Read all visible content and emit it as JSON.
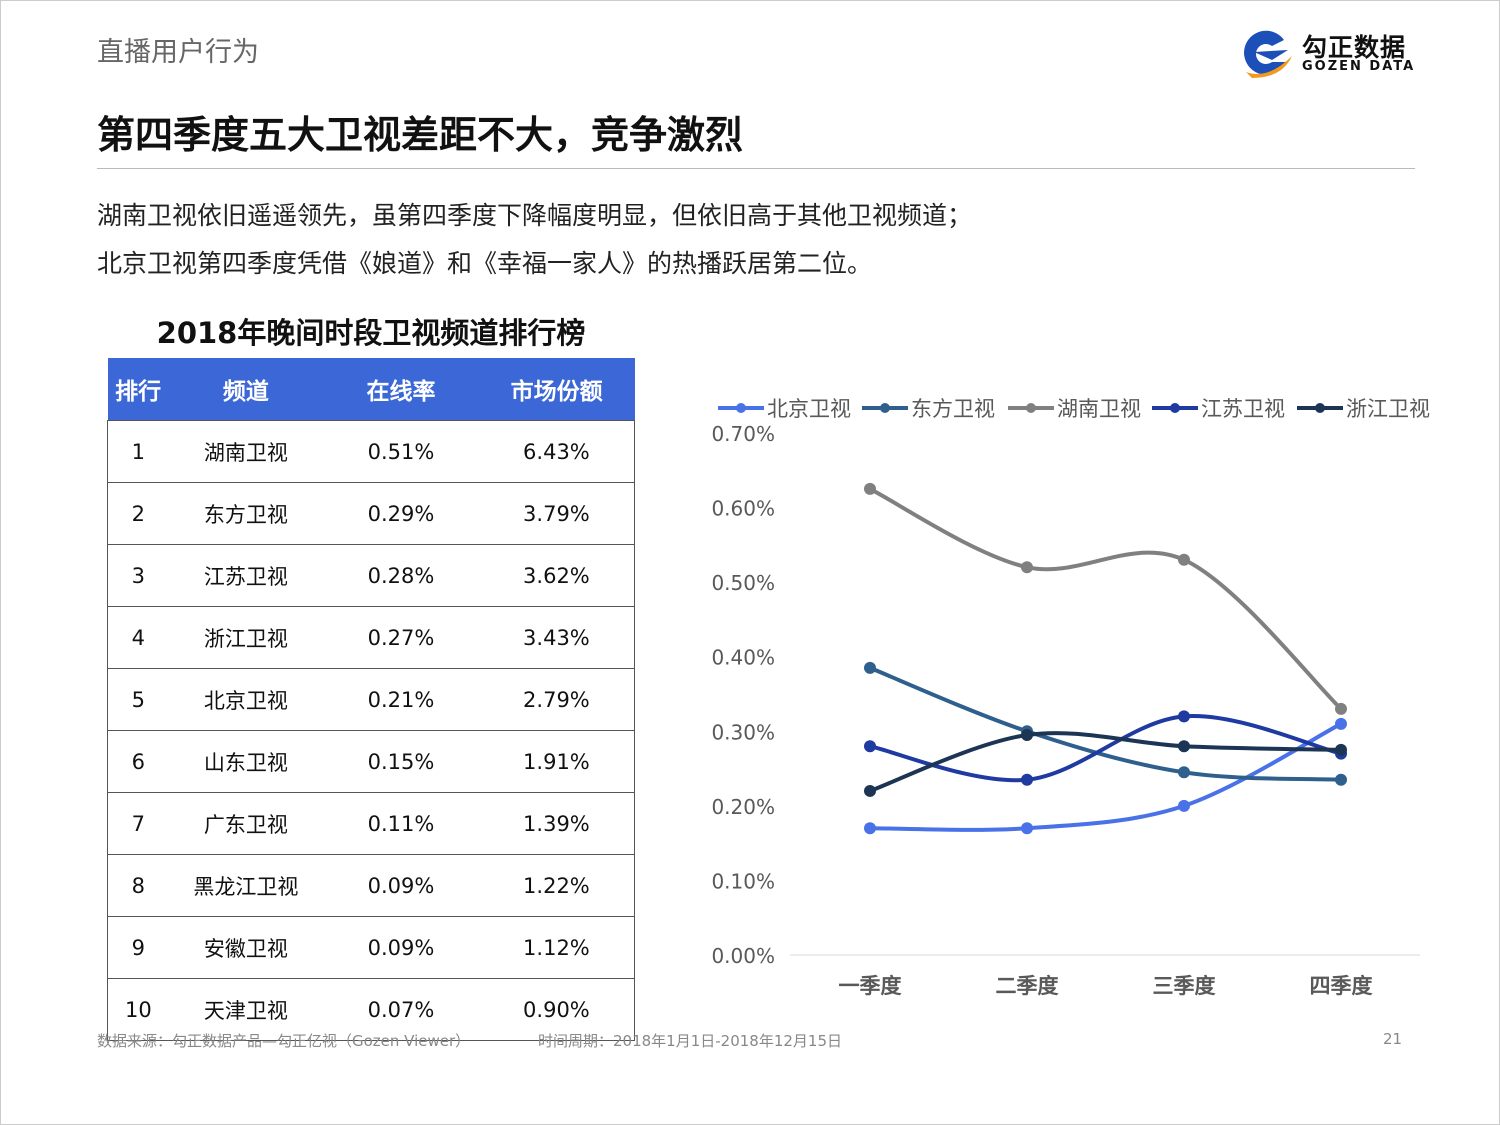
{
  "header": {
    "section": "直播用户行为",
    "title": "第四季度五大卫视差距不大，竞争激烈",
    "logo_cn": "勾正数据",
    "logo_en": "GOZEN DATA"
  },
  "description": [
    "湖南卫视依旧遥遥领先，虽第四季度下降幅度明显，但依旧高于其他卫视频道；",
    "北京卫视第四季度凭借《娘道》和《幸福一家人》的热播跃居第二位。"
  ],
  "table": {
    "title": "2018年晚间时段卫视频道排行榜",
    "header_color": "#3b68d6",
    "columns": [
      "排行",
      "频道",
      "在线率",
      "市场份额"
    ],
    "rows": [
      [
        "1",
        "湖南卫视",
        "0.51%",
        "6.43%"
      ],
      [
        "2",
        "东方卫视",
        "0.29%",
        "3.79%"
      ],
      [
        "3",
        "江苏卫视",
        "0.28%",
        "3.62%"
      ],
      [
        "4",
        "浙江卫视",
        "0.27%",
        "3.43%"
      ],
      [
        "5",
        "北京卫视",
        "0.21%",
        "2.79%"
      ],
      [
        "6",
        "山东卫视",
        "0.15%",
        "1.91%"
      ],
      [
        "7",
        "广东卫视",
        "0.11%",
        "1.39%"
      ],
      [
        "8",
        "黑龙江卫视",
        "0.09%",
        "1.22%"
      ],
      [
        "9",
        "安徽卫视",
        "0.09%",
        "1.12%"
      ],
      [
        "10",
        "天津卫视",
        "0.07%",
        "0.90%"
      ]
    ]
  },
  "chart_data": {
    "type": "line",
    "smooth": true,
    "categories": [
      "一季度",
      "二季度",
      "三季度",
      "四季度"
    ],
    "ylim": [
      0,
      0.7
    ],
    "yticks": [
      "0.00%",
      "0.10%",
      "0.20%",
      "0.30%",
      "0.40%",
      "0.50%",
      "0.60%",
      "0.70%"
    ],
    "yunit": "%",
    "grid": false,
    "legend": "top",
    "series": [
      {
        "name": "北京卫视",
        "color": "#4a72e8",
        "values": [
          0.17,
          0.17,
          0.2,
          0.31
        ]
      },
      {
        "name": "东方卫视",
        "color": "#2f5f8c",
        "values": [
          0.385,
          0.3,
          0.245,
          0.235
        ]
      },
      {
        "name": "湖南卫视",
        "color": "#808080",
        "values": [
          0.625,
          0.52,
          0.53,
          0.33
        ]
      },
      {
        "name": "江苏卫视",
        "color": "#1f3aa0",
        "values": [
          0.28,
          0.235,
          0.32,
          0.27
        ]
      },
      {
        "name": "浙江卫视",
        "color": "#1c3554",
        "values": [
          0.22,
          0.295,
          0.28,
          0.275
        ]
      }
    ]
  },
  "footer": {
    "source": "数据来源：勾正数据产品—勾正亿视（Gozen Viewer）",
    "period": "时间周期：2018年1月1日-2018年12月15日",
    "page": "21"
  }
}
